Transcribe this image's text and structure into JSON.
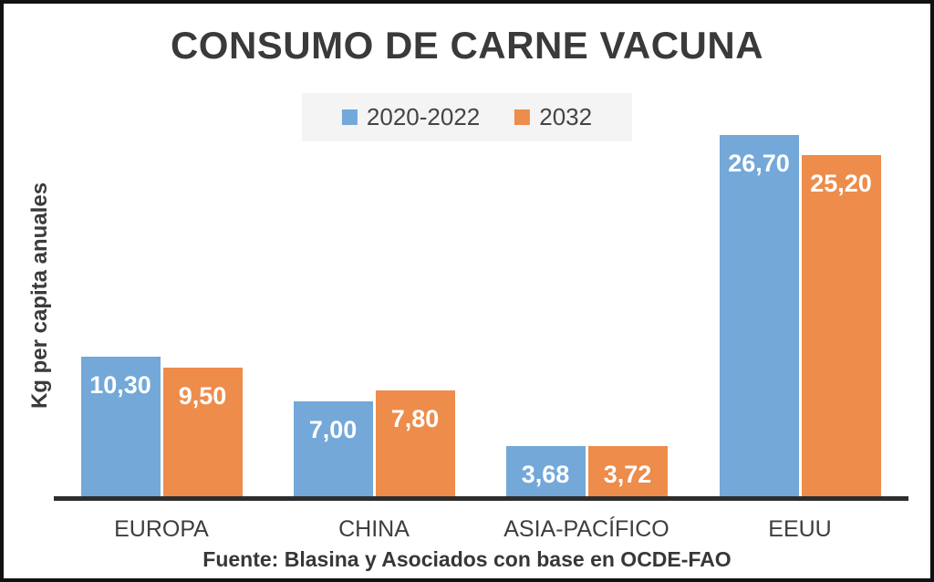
{
  "title": "CONSUMO DE CARNE VACUNA",
  "ylabel": "Kg per capita anuales",
  "footer": "Fuente: Blasina y Asociados con base en  OCDE-FAO",
  "colors": {
    "series_blue": "#73A8D9",
    "series_orange": "#ED8C4B",
    "title_text": "#3a3a3a",
    "axis_line": "#2d2d2d",
    "legend_background": "#f4f4f4",
    "bar_value_text": "#ffffff"
  },
  "legend": {
    "items": [
      {
        "label": "2020-2022",
        "color": "#73A8D9"
      },
      {
        "label": "2032",
        "color": "#ED8C4B"
      }
    ]
  },
  "chart_data": {
    "type": "bar",
    "title": "CONSUMO DE CARNE VACUNA",
    "xlabel": "",
    "ylabel": "Kg per capita anuales",
    "categories": [
      "EUROPA",
      "CHINA",
      "ASIA-PACÍFICO",
      "EEUU"
    ],
    "series": [
      {
        "name": "2020-2022",
        "color": "#73A8D9",
        "values": [
          10.3,
          7.0,
          3.68,
          26.7
        ],
        "labels": [
          "10,30",
          "7,00",
          "3,68",
          "26,70"
        ]
      },
      {
        "name": "2032",
        "color": "#ED8C4B",
        "values": [
          9.5,
          7.8,
          3.72,
          25.2
        ],
        "labels": [
          "9,50",
          "7,80",
          "3,72",
          "25,20"
        ]
      }
    ],
    "ylim": [
      0,
      27
    ],
    "grid": false,
    "y_axis_ticks_visible": false,
    "legend_position": "top-center",
    "data_labels": "inside-top, white, decimal comma",
    "source": "Fuente: Blasina y Asociados con base en  OCDE-FAO"
  }
}
